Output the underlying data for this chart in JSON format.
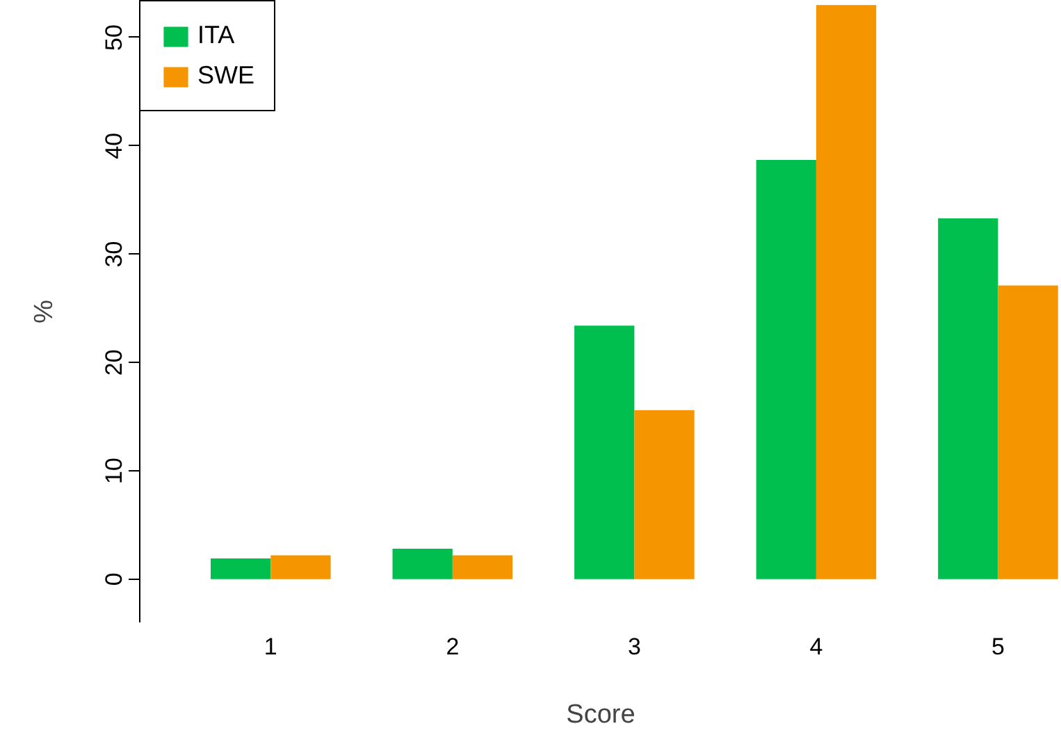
{
  "chart_data": {
    "type": "bar",
    "xlabel": "Score",
    "ylabel": "%",
    "categories": [
      "1",
      "2",
      "3",
      "4",
      "5"
    ],
    "series": [
      {
        "name": "ITA",
        "color": "#00bf4f",
        "values": [
          1.9,
          2.8,
          23.4,
          38.7,
          33.3
        ]
      },
      {
        "name": "SWE",
        "color": "#f59500",
        "values": [
          2.2,
          2.2,
          15.6,
          53.0,
          27.1
        ]
      }
    ],
    "ylim": [
      -4,
      53.4
    ],
    "yticks": [
      0,
      10,
      20,
      30,
      40,
      50
    ],
    "grid": false,
    "legend": "top left"
  }
}
